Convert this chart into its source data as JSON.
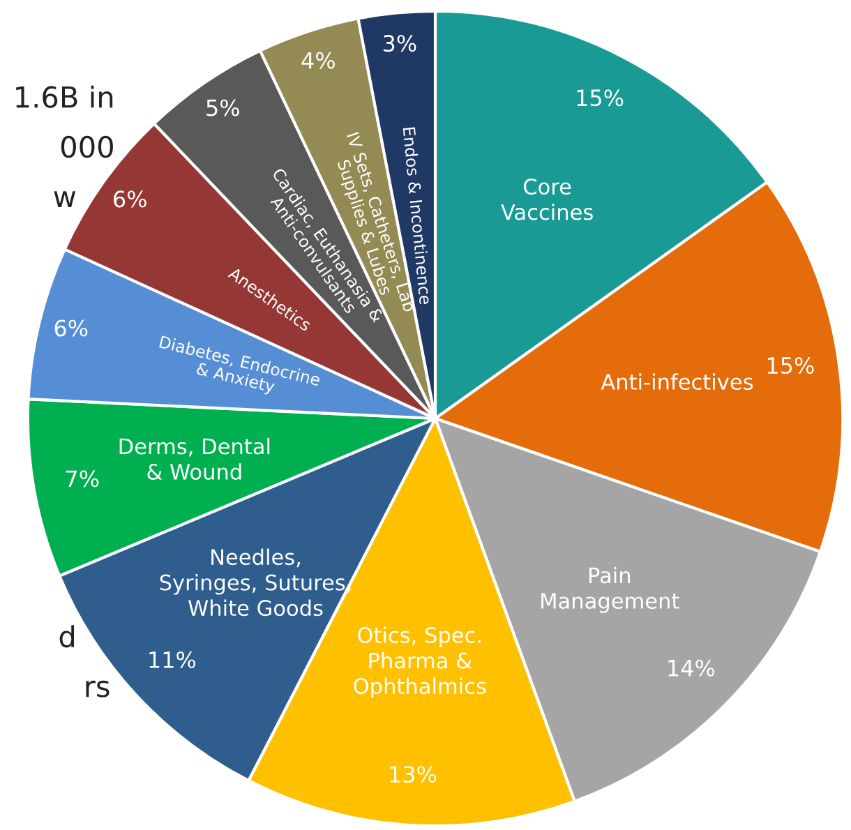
{
  "chart_data": {
    "type": "pie",
    "categories": [
      "Core\nVaccines",
      "Anti-infectives",
      "Pain\nManagement",
      "Otics, Spec.\nPharma &\nOphthalmics",
      "Needles,\nSyringes, Sutures,\nWhite Goods",
      "Derms, Dental\n& Wound",
      "Diabetes, Endocrine\n& Anxiety",
      "Anesthetics",
      "Cardiac, Euthanasia &\nAnti-convulsants",
      "IV Sets, Catheters, Lab\nSupplies & Lubes",
      "Endos & Incontinence"
    ],
    "values": [
      15,
      15,
      14,
      13,
      11,
      7,
      6,
      6,
      5,
      4,
      3
    ],
    "value_labels": [
      "15%",
      "15%",
      "14%",
      "13%",
      "11%",
      "7%",
      "6%",
      "6%",
      "5%",
      "4%",
      "3%"
    ],
    "colors": [
      "#1a9a94",
      "#e46c0a",
      "#a5a5a5",
      "#ffc000",
      "#2e5d8e",
      "#00b050",
      "#558ed5",
      "#953735",
      "#595959",
      "#948a54",
      "#1f3864"
    ],
    "annotations": [
      "1.6B in",
      "000",
      "w",
      "d",
      "rs"
    ]
  }
}
